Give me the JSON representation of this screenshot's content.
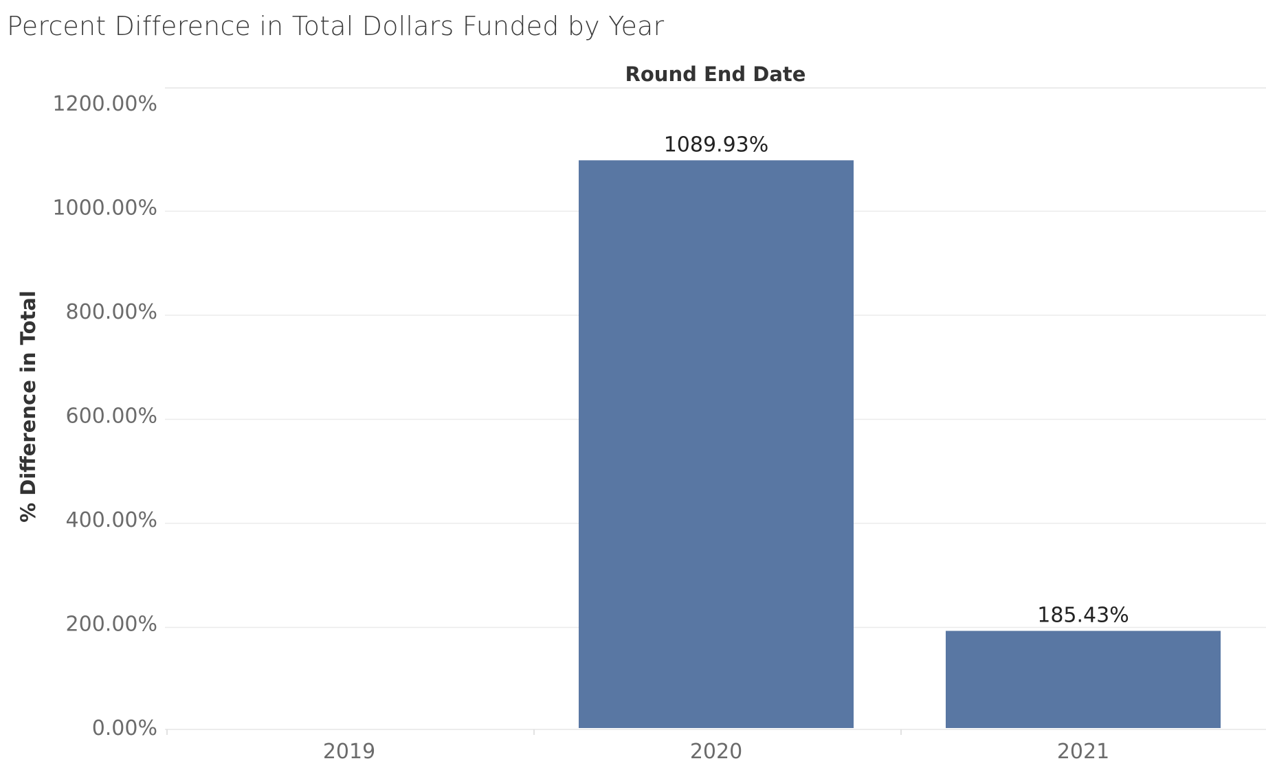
{
  "title": "Percent Difference in Total Dollars Funded by Year",
  "chart_data": {
    "type": "bar",
    "title": "Percent Difference in Total Dollars Funded by Year",
    "column_header": "Round End Date",
    "ylabel": "% Difference in Total",
    "xlabel": "",
    "categories": [
      "2019",
      "2020",
      "2021"
    ],
    "values": [
      null,
      1089.93,
      185.43
    ],
    "data_labels": [
      "",
      "1089.93%",
      "185.43%"
    ],
    "ylim": [
      0,
      1200
    ],
    "yticks": [
      0,
      200,
      400,
      600,
      800,
      1000,
      1200
    ],
    "ytick_labels": [
      "0.00%",
      "200.00%",
      "400.00%",
      "600.00%",
      "800.00%",
      "1000.00%",
      "1200.00%"
    ],
    "grid": true,
    "legend": "none",
    "bar_color": "#5977a3",
    "gridline_color": "#ebebeb"
  }
}
